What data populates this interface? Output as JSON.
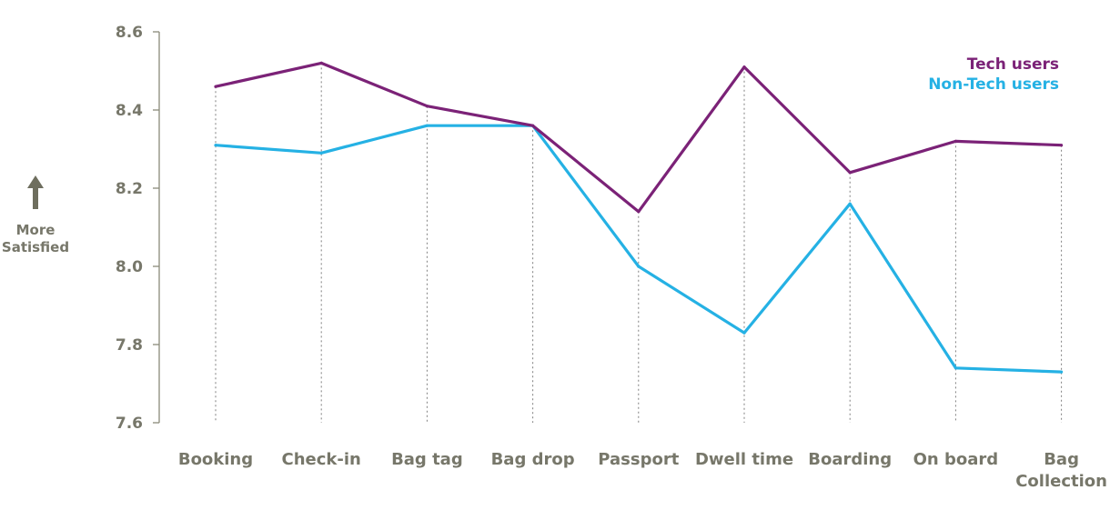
{
  "chart_data": {
    "type": "line",
    "categories": [
      "Booking",
      "Check-in",
      "Bag tag",
      "Bag drop",
      "Passport",
      "Dwell time",
      "Boarding",
      "On board",
      "Bag Collection"
    ],
    "category_lines": [
      [
        "Booking"
      ],
      [
        "Check-in"
      ],
      [
        "Bag tag"
      ],
      [
        "Bag drop"
      ],
      [
        "Passport"
      ],
      [
        "Dwell time"
      ],
      [
        "Boarding"
      ],
      [
        "On board"
      ],
      [
        "Bag",
        "Collection"
      ]
    ],
    "series": [
      {
        "name": "Tech users",
        "color": "#7b2277",
        "values": [
          8.46,
          8.52,
          8.41,
          8.36,
          8.14,
          8.51,
          8.24,
          8.32,
          8.31
        ]
      },
      {
        "name": "Non-Tech users",
        "color": "#25b1e4",
        "values": [
          8.31,
          8.29,
          8.36,
          8.36,
          8.0,
          7.83,
          8.16,
          7.74,
          7.73
        ]
      }
    ],
    "ylim": [
      7.6,
      8.6
    ],
    "yticks": [
      "7.6",
      "7.8",
      "8.0",
      "8.2",
      "8.4",
      "8.6"
    ],
    "legend_position": "top-right",
    "axis_note": [
      "More",
      "Satisfied"
    ],
    "axis_note_icon": "up-arrow-icon",
    "gridlines": "dotted vertical at categories"
  }
}
